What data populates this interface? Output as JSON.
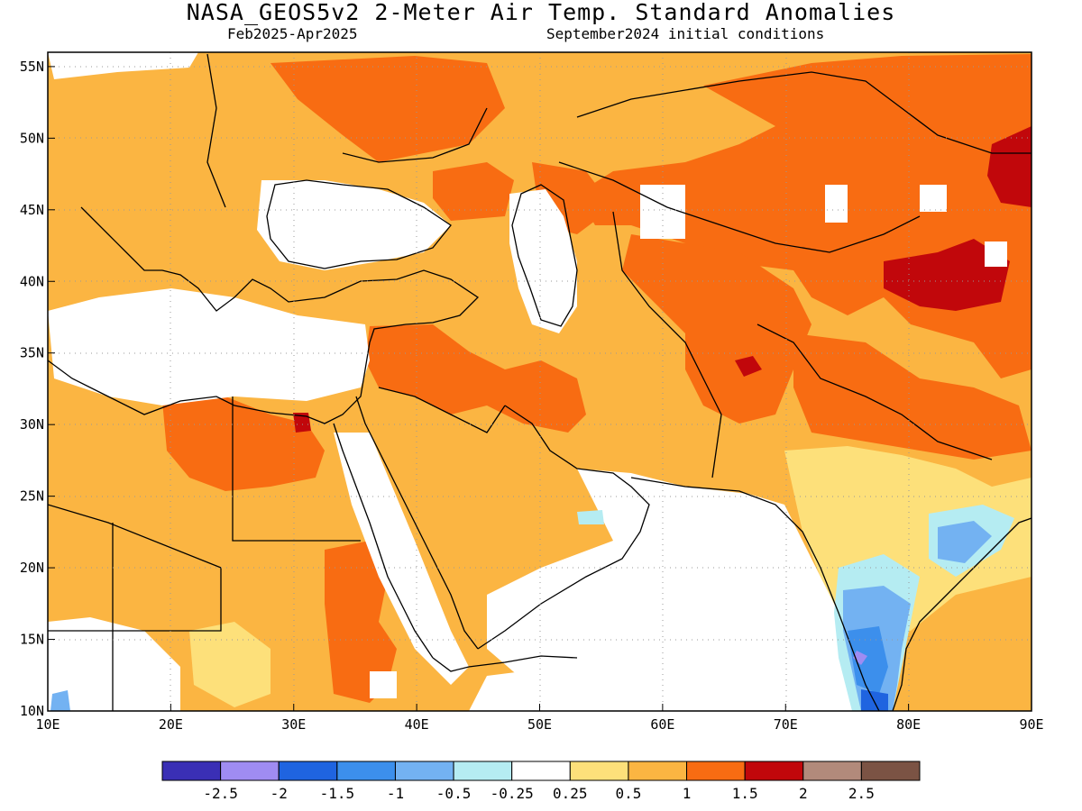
{
  "title": "NASA_GEOS5v2 2-Meter Air Temp. Standard Anomalies",
  "subtitle_left": "Feb2025-Apr2025",
  "subtitle_right": "September2024 initial conditions",
  "map": {
    "lon_range": [
      10,
      90
    ],
    "lat_range": [
      10,
      56
    ],
    "x_ticks": [
      "10E",
      "20E",
      "30E",
      "40E",
      "50E",
      "60E",
      "70E",
      "80E",
      "90E"
    ],
    "y_ticks": [
      "55N",
      "50N",
      "45N",
      "40N",
      "35N",
      "30N",
      "25N",
      "20N",
      "15N",
      "10N"
    ]
  },
  "colorbar": {
    "colors": [
      "#3a2fb5",
      "#9f8cf2",
      "#1f64e0",
      "#3c8fec",
      "#73b2f2",
      "#b5ecf2",
      "#ffffff",
      "#fde07a",
      "#fbb542",
      "#f86c12",
      "#c1070b",
      "#b28a7b",
      "#7b5344"
    ],
    "labels": [
      "-2.5",
      "-2",
      "-1.5",
      "-1",
      "-0.5",
      "-0.25",
      "0.25",
      "0.5",
      "1",
      "1.5",
      "2",
      "2.5"
    ]
  },
  "colors": {
    "warm_light": "#fbb542",
    "warm_mid": "#f86c12",
    "warm_strong": "#c1070b",
    "pale": "#fde07a",
    "cool_light": "#73b2f2",
    "cool_mid": "#3c8fec",
    "cool_faint": "#b5ecf2"
  }
}
